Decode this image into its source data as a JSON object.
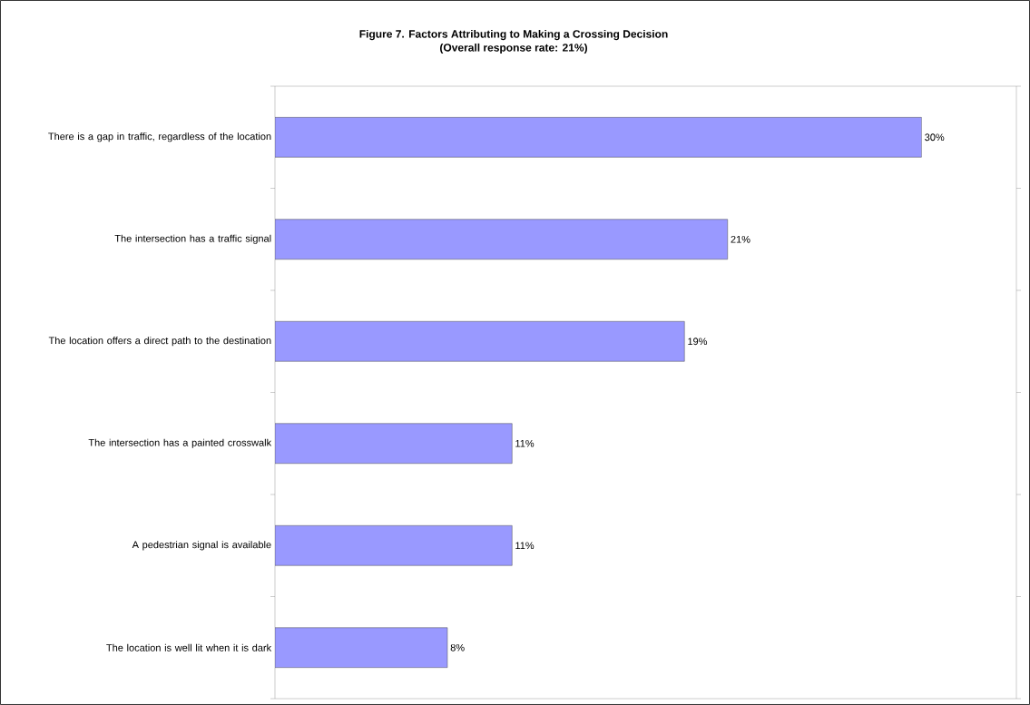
{
  "chart_data": {
    "type": "bar",
    "orientation": "horizontal",
    "title": "Figure 7. Factors Attributing to Making a Crossing Decision",
    "subtitle": "(Overall response rate: 21%)",
    "categories": [
      "There is a gap in traffic, regardless of the location",
      "The intersection has a traffic signal",
      "The location offers a direct path to the destination",
      "The intersection has a painted crosswalk",
      "A pedestrian signal is available",
      "The location is well lit when it is dark"
    ],
    "values": [
      30,
      21,
      19,
      11,
      11,
      8
    ],
    "value_labels": [
      "30%",
      "21%",
      "19%",
      "11%",
      "11%",
      "8%"
    ],
    "color": "#9999ff",
    "xlim": [
      0,
      34.4
    ],
    "tick_labels": "y"
  }
}
